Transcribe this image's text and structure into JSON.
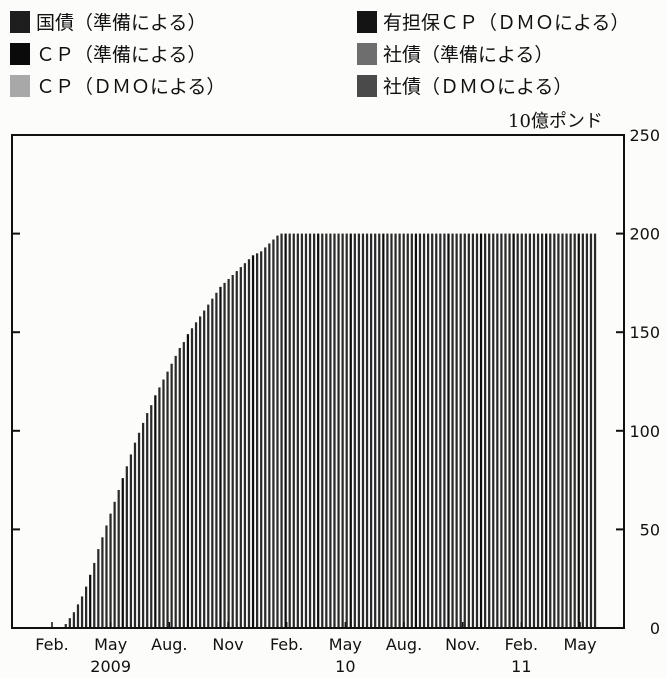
{
  "legend": [
    {
      "label": "国債（準備による）",
      "color": "#1e1e1e"
    },
    {
      "label": "有担保ＣＰ（ＤＭＯによる）",
      "color": "#141414"
    },
    {
      "label": "ＣＰ（準備による）",
      "color": "#0a0a0a"
    },
    {
      "label": "社債（準備による）",
      "color": "#6e6e6e"
    },
    {
      "label": "ＣＰ（ＤＭＯによる）",
      "color": "#a8a8a8"
    },
    {
      "label": "社債（ＤＭＯによる）",
      "color": "#4a4a4a"
    }
  ],
  "chart_data": {
    "type": "bar",
    "stacked": true,
    "unit_label": "10億ポンド",
    "ylim": [
      0,
      250
    ],
    "yticks": [
      0,
      50,
      100,
      150,
      200,
      250
    ],
    "grid": false,
    "y_axis_side": "right",
    "x_tick_labels": [
      "Feb.",
      "May",
      "Aug.",
      "Nov",
      "Feb.",
      "May",
      "Aug.",
      "Nov.",
      "Feb.",
      "May"
    ],
    "x_year_labels": [
      {
        "label": "2009",
        "at_tick": 1
      },
      {
        "label": "10",
        "at_tick": 5
      },
      {
        "label": "11",
        "at_tick": 8
      }
    ],
    "frequency": "weekly",
    "start": "2009-01-07",
    "series_name": "国債（準備による）",
    "values": [
      0,
      0,
      0,
      0,
      0,
      0,
      0,
      0,
      0,
      2,
      5,
      8,
      12,
      16,
      21,
      27,
      33,
      40,
      46,
      52,
      58,
      64,
      70,
      76,
      82,
      88,
      94,
      99,
      104,
      109,
      113,
      118,
      122,
      126,
      130,
      134,
      138,
      142,
      145,
      149,
      152,
      155,
      158,
      161,
      164,
      167,
      170,
      173,
      175,
      177,
      179,
      181,
      183,
      185,
      187,
      189,
      190,
      191,
      193,
      195,
      197,
      199,
      200,
      200,
      200,
      200,
      200,
      200,
      200,
      200,
      200,
      200,
      200,
      200,
      200,
      200,
      200,
      200,
      200,
      200,
      200,
      200,
      200,
      200,
      200,
      200,
      200,
      200,
      200,
      200,
      200,
      200,
      200,
      200,
      200,
      200,
      200,
      200,
      200,
      200,
      200,
      200,
      200,
      200,
      200,
      200,
      200,
      200,
      200,
      200,
      200,
      200,
      200,
      200,
      200,
      200,
      200,
      200,
      200,
      200,
      200,
      200,
      200,
      200,
      200,
      200,
      200,
      200,
      200,
      200,
      200,
      200,
      200,
      200,
      200,
      200,
      200,
      200,
      200,
      200
    ]
  }
}
